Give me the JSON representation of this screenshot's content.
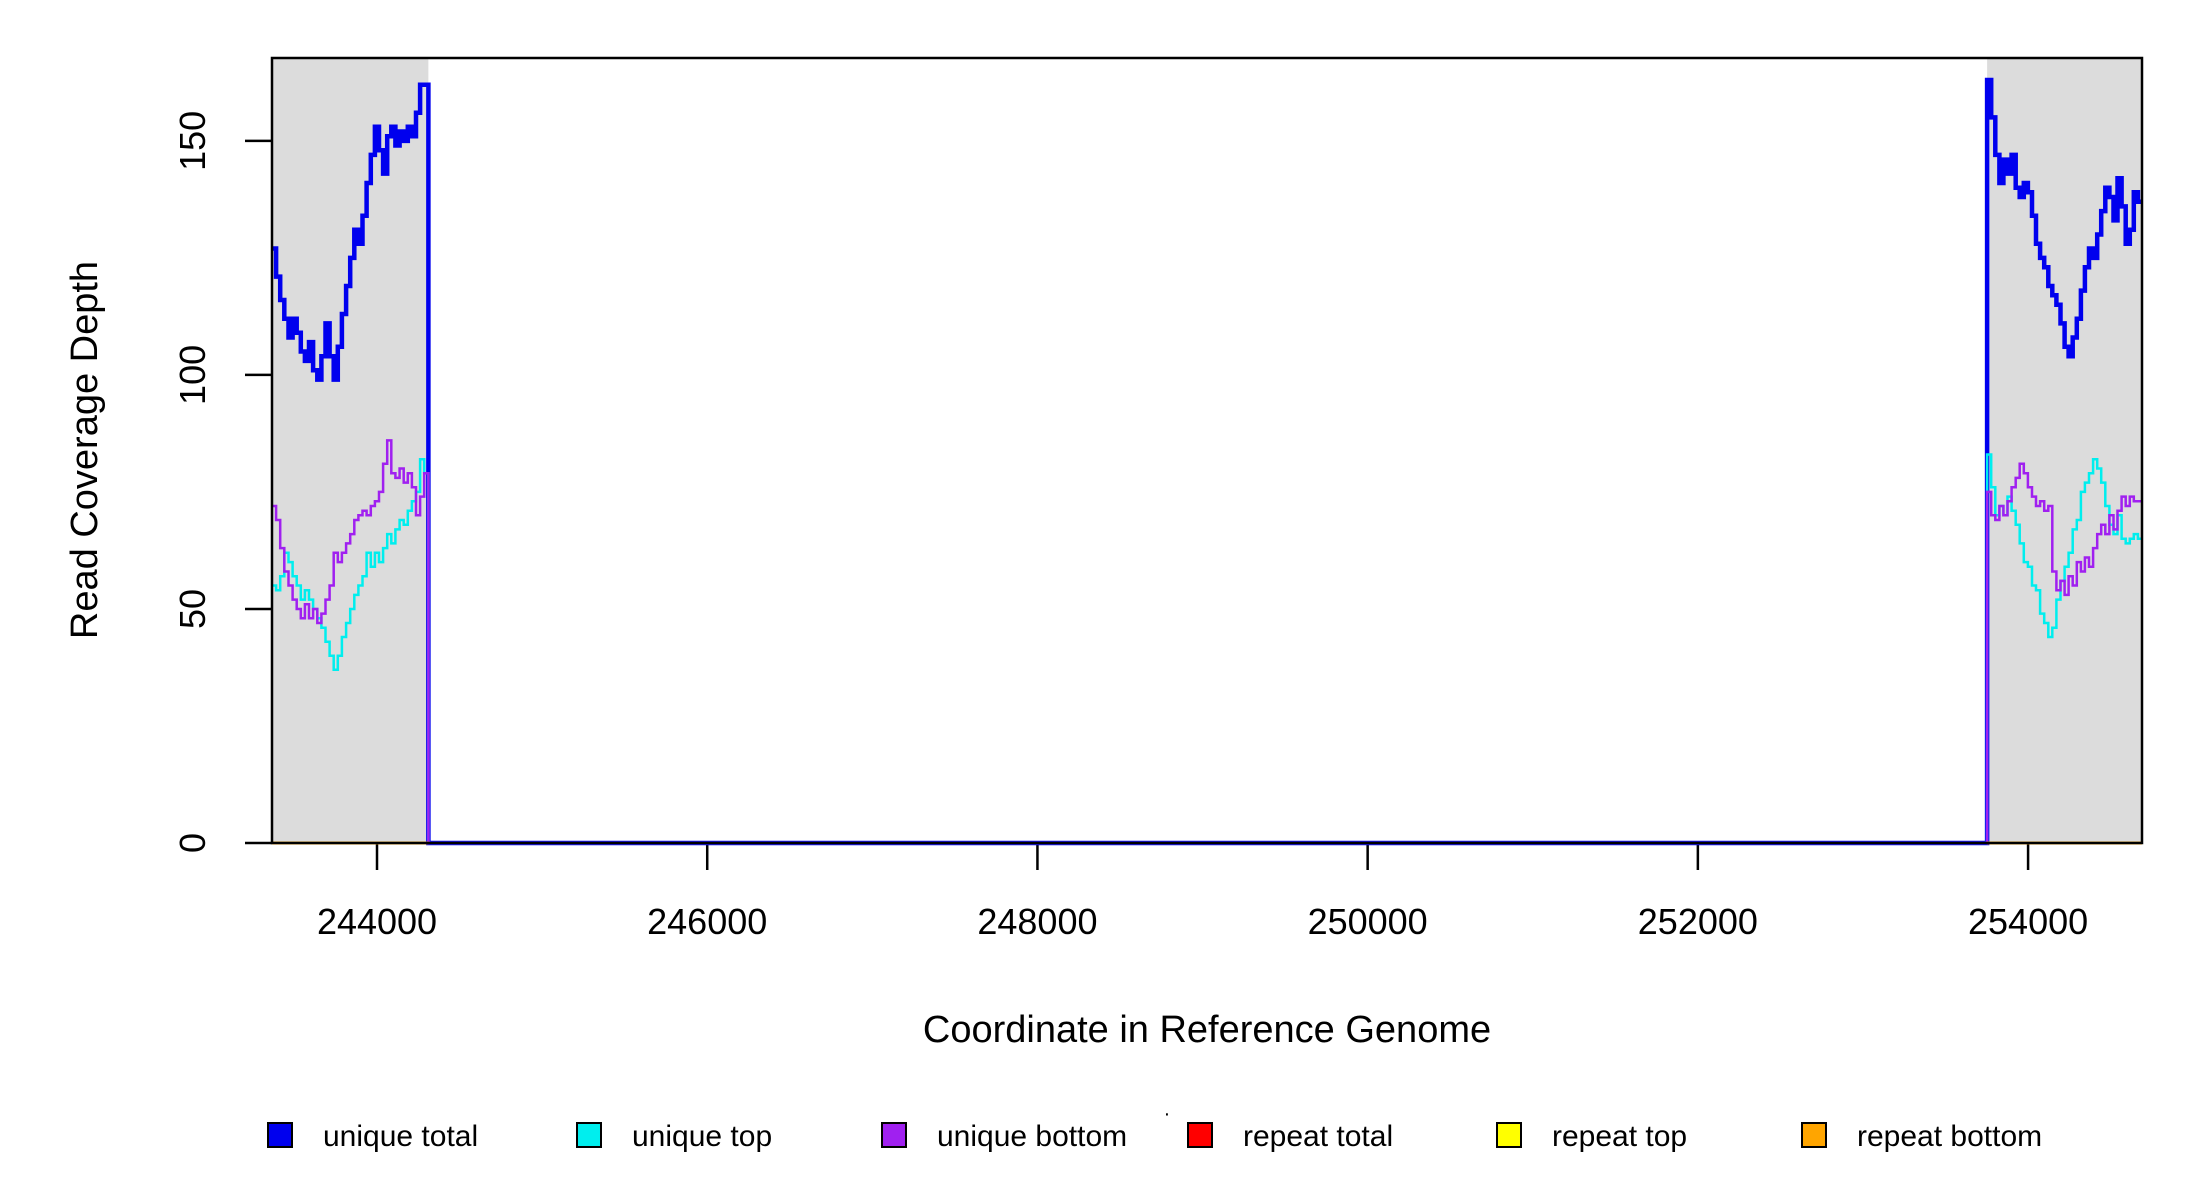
{
  "figure": {
    "background": "#FFFFFF",
    "plot_border_color": "#000000",
    "shaded_band_color": "#DCDCDC"
  },
  "chart_data": {
    "type": "line",
    "subtype": "step-coverage",
    "title": "",
    "xlabel": "Coordinate in Reference Genome",
    "ylabel": "Read Coverage Depth",
    "xlim": [
      243364,
      254690
    ],
    "ylim": [
      0,
      167.7
    ],
    "x_ticks": [
      244000,
      246000,
      248000,
      250000,
      252000,
      254000
    ],
    "x_tick_labels": [
      "244000",
      "246000",
      "248000",
      "250000",
      "252000",
      "254000"
    ],
    "y_ticks": [
      0,
      50,
      100,
      150
    ],
    "y_tick_labels": [
      "0",
      "50",
      "100",
      "150"
    ],
    "grid": false,
    "legend_position": "bottom",
    "shaded_regions": [
      {
        "x_start": 243364,
        "x_end": 244311
      },
      {
        "x_start": 253752,
        "x_end": 254690
      }
    ],
    "series": [
      {
        "name": "unique total",
        "color": "#0000EE",
        "line_width": 4.5,
        "kind": "unique",
        "middle_value": 0,
        "left_values": [
          127,
          121,
          116,
          112,
          108,
          112,
          109,
          105,
          103,
          107,
          101,
          99,
          104,
          111,
          104,
          99,
          106,
          113,
          119,
          125,
          131,
          128,
          134,
          141,
          147,
          153,
          148,
          143,
          151,
          153,
          149,
          152,
          150,
          153,
          151,
          156,
          162,
          162
        ],
        "right_values": [
          163,
          155,
          147,
          141,
          146,
          143,
          147,
          140,
          138,
          141,
          139,
          134,
          128,
          125,
          123,
          119,
          117,
          115,
          111,
          106,
          104,
          108,
          112,
          118,
          123,
          127,
          125,
          130,
          135,
          140,
          138,
          133,
          142,
          136,
          128,
          131,
          139,
          137
        ]
      },
      {
        "name": "unique top",
        "color": "#00EEEE",
        "line_width": 2.5,
        "kind": "unique",
        "middle_value": 0,
        "left_values": [
          55,
          54,
          57,
          62,
          60,
          57,
          55,
          52,
          54,
          52,
          50,
          48,
          46,
          43,
          40,
          37,
          40,
          44,
          47,
          50,
          53,
          55,
          57,
          62,
          59,
          62,
          60,
          63,
          66,
          64,
          67,
          69,
          68,
          71,
          73,
          75,
          82,
          79
        ],
        "right_values": [
          83,
          76,
          70,
          72,
          70,
          74,
          71,
          68,
          64,
          60,
          59,
          55,
          54,
          49,
          47,
          44,
          46,
          52,
          56,
          59,
          62,
          67,
          69,
          75,
          77,
          79,
          82,
          80,
          77,
          72,
          68,
          66,
          70,
          65,
          64,
          65,
          66,
          65
        ]
      },
      {
        "name": "unique bottom",
        "color": "#A020F0",
        "line_width": 2.5,
        "kind": "unique",
        "middle_value": 0,
        "left_values": [
          72,
          69,
          63,
          58,
          55,
          52,
          50,
          48,
          51,
          48,
          50,
          47,
          49,
          52,
          55,
          62,
          60,
          62,
          64,
          66,
          69,
          70,
          71,
          70,
          72,
          73,
          75,
          81,
          86,
          79,
          78,
          80,
          77,
          79,
          76,
          70,
          74,
          79
        ],
        "right_values": [
          75,
          70,
          69,
          72,
          70,
          73,
          76,
          78,
          81,
          79,
          76,
          74,
          72,
          73,
          71,
          72,
          58,
          54,
          56,
          53,
          57,
          55,
          60,
          58,
          61,
          59,
          63,
          66,
          68,
          66,
          70,
          67,
          71,
          74,
          72,
          74,
          73,
          73
        ]
      },
      {
        "name": "repeat total",
        "color": "#FF0000",
        "line_width": 3,
        "kind": "repeat",
        "constant_value": 0,
        "extent": "shaded_regions_only"
      },
      {
        "name": "repeat top",
        "color": "#FFFF00",
        "line_width": 3,
        "kind": "repeat",
        "constant_value": 0,
        "extent": "shaded_regions_only"
      },
      {
        "name": "repeat bottom",
        "color": "#FFA500",
        "line_width": 3,
        "kind": "repeat",
        "constant_value": 0,
        "extent": "shaded_regions_only"
      }
    ]
  },
  "legend": {
    "swatch_border_color": "#000000",
    "items": [
      {
        "label": "unique total",
        "color": "#0000EE"
      },
      {
        "label": "unique top",
        "color": "#00EEEE"
      },
      {
        "label": "unique bottom",
        "color": "#A020F0"
      },
      {
        "label": "repeat total",
        "color": "#FF0000"
      },
      {
        "label": "repeat top",
        "color": "#FFFF00"
      },
      {
        "label": "repeat bottom",
        "color": "#FFA500"
      }
    ]
  },
  "artifact_dot": "·"
}
